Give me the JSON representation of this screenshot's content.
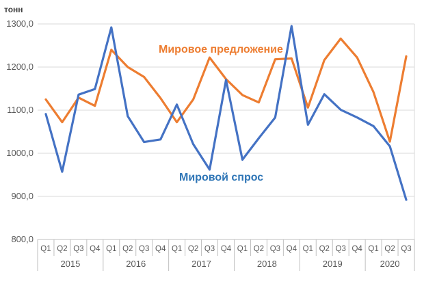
{
  "chart_data": {
    "type": "line",
    "ylabel": "тонн",
    "ylim": [
      800,
      1300
    ],
    "yticks": [
      "800,0",
      "900,0",
      "1000,0",
      "1100,0",
      "1200,0",
      "1300,0"
    ],
    "grid": true,
    "quarters": [
      "Q1",
      "Q2",
      "Q3",
      "Q4",
      "Q1",
      "Q2",
      "Q3",
      "Q4",
      "Q1",
      "Q2",
      "Q3",
      "Q4",
      "Q1",
      "Q2",
      "Q3",
      "Q4",
      "Q1",
      "Q2",
      "Q3",
      "Q4",
      "Q1",
      "Q2",
      "Q3"
    ],
    "years": [
      {
        "label": "2015",
        "count": 4
      },
      {
        "label": "2016",
        "count": 4
      },
      {
        "label": "2017",
        "count": 4
      },
      {
        "label": "2018",
        "count": 4
      },
      {
        "label": "2019",
        "count": 4
      },
      {
        "label": "2020",
        "count": 3
      }
    ],
    "series": [
      {
        "name": "Мировое предложение",
        "color": "#ED7D31",
        "values": [
          1125,
          1072,
          1129,
          1110,
          1240,
          1200,
          1177,
          1128,
          1072,
          1125,
          1222,
          1172,
          1135,
          1118,
          1218,
          1220,
          1106,
          1216,
          1266,
          1222,
          1142,
          1027,
          1225
        ]
      },
      {
        "name": "Мировой спрос",
        "color": "#4472C4",
        "values": [
          1091,
          957,
          1136,
          1149,
          1292,
          1086,
          1026,
          1032,
          1113,
          1021,
          962,
          1170,
          985,
          1035,
          1083,
          1295,
          1066,
          1137,
          1101,
          1083,
          1063,
          1016,
          892
        ]
      }
    ]
  }
}
